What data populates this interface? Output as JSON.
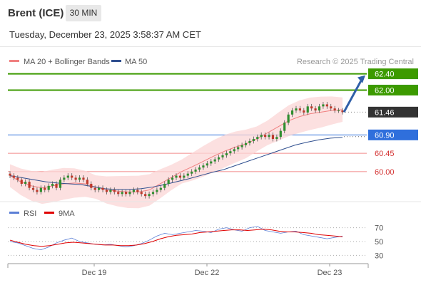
{
  "header": {
    "symbol": "Brent (ICE)",
    "timeframe": "30 MIN",
    "datetime": "Tuesday, December 23, 2025 3:58:37 AM CET"
  },
  "legend": {
    "ma20_label": "MA 20 + Bollinger Bands",
    "ma50_label": "MA 50",
    "copyright": "Research © 2025 Trading Central",
    "ma20_color": "#f08080",
    "ma50_color": "#2f4f8f"
  },
  "rsi_legend": {
    "rsi_label": "RSI",
    "ma_label": "9MA",
    "rsi_color": "#5b7fd6",
    "ma_color": "#e00000"
  },
  "levels": [
    {
      "value": 62.4,
      "label": "62.40",
      "kind": "target",
      "color": "#3c9a00"
    },
    {
      "value": 62.0,
      "label": "62.00",
      "kind": "resistance",
      "color": "#3c9a00"
    },
    {
      "value": 61.46,
      "label": "61.46",
      "kind": "last",
      "color": "#333333"
    },
    {
      "value": 60.9,
      "label": "60.90",
      "kind": "pivot",
      "color": "#2f6fdc"
    },
    {
      "value": 60.45,
      "label": "60.45",
      "kind": "support",
      "color": "#f28b8b"
    },
    {
      "value": 60.0,
      "label": "60.00",
      "kind": "support",
      "color": "#f28b8b"
    }
  ],
  "x_axis": {
    "labels": [
      "Dec 19",
      "Dec 22",
      "Dec 23"
    ]
  },
  "chart_data": [
    {
      "type": "candlestick",
      "title": "",
      "ylim": [
        59.35,
        62.55
      ],
      "series": [
        {
          "name": "Brent (ICE)",
          "closes": [
            59.9,
            59.85,
            59.8,
            59.7,
            59.75,
            59.6,
            59.55,
            59.5,
            59.6,
            59.55,
            59.65,
            59.7,
            59.6,
            59.8,
            59.85,
            59.9,
            59.85,
            59.8,
            59.85,
            59.8,
            59.7,
            59.6,
            59.55,
            59.6,
            59.55,
            59.5,
            59.55,
            59.5,
            59.45,
            59.5,
            59.45,
            59.5,
            59.55,
            59.5,
            59.45,
            59.4,
            59.45,
            59.5,
            59.55,
            59.6,
            59.7,
            59.8,
            59.85,
            59.9,
            59.85,
            59.9,
            59.95,
            60.0,
            60.05,
            60.1,
            60.15,
            60.2,
            60.25,
            60.3,
            60.35,
            60.4,
            60.45,
            60.5,
            60.55,
            60.6,
            60.65,
            60.7,
            60.75,
            60.8,
            60.85,
            60.9,
            60.85,
            60.9,
            60.8,
            60.85,
            61.0,
            61.2,
            61.4,
            61.5,
            61.55,
            61.5,
            61.45,
            61.6,
            61.55,
            61.5,
            61.6,
            61.65,
            61.6,
            61.55,
            61.5,
            61.5,
            61.46
          ]
        },
        {
          "name": "MA 20",
          "values_approx": [
            59.9,
            59.75,
            59.65,
            59.6,
            59.65,
            59.7,
            59.72,
            59.7,
            59.62,
            59.55,
            59.52,
            59.5,
            59.5,
            59.55,
            59.7,
            59.85,
            60.0,
            60.12,
            60.25,
            60.38,
            60.5,
            60.6,
            60.68,
            60.8,
            60.95,
            61.1,
            61.25,
            61.35,
            61.42,
            61.46,
            61.5,
            61.52
          ]
        },
        {
          "name": "MA 50",
          "values_approx": [
            59.9,
            59.85,
            59.8,
            59.75,
            59.72,
            59.7,
            59.68,
            59.63,
            59.58,
            59.56,
            59.56,
            59.58,
            59.62,
            59.68,
            59.75,
            59.82,
            59.9,
            59.98,
            60.05,
            60.15,
            60.25,
            60.35,
            60.45,
            60.55,
            60.65,
            60.72,
            60.78,
            60.82,
            60.84
          ]
        }
      ]
    },
    {
      "type": "line",
      "title": "",
      "ylim": [
        20,
        80
      ],
      "yticks": [
        70,
        50,
        30
      ],
      "series": [
        {
          "name": "RSI",
          "values_approx": [
            50,
            48,
            44,
            40,
            38,
            42,
            48,
            52,
            55,
            50,
            48,
            46,
            45,
            46,
            44,
            42,
            44,
            47,
            52,
            58,
            62,
            60,
            62,
            64,
            66,
            65,
            63,
            68,
            70,
            67,
            65,
            70,
            72,
            66,
            64,
            62,
            64,
            65,
            60,
            58,
            56,
            54,
            56,
            58
          ]
        },
        {
          "name": "9MA",
          "values_approx": [
            52,
            49,
            46,
            44,
            43,
            44,
            46,
            48,
            49,
            48,
            47,
            46,
            45,
            45,
            44,
            44,
            45,
            47,
            50,
            54,
            57,
            59,
            60,
            61,
            63,
            64,
            65,
            66,
            67,
            67,
            66,
            67,
            68,
            67,
            65,
            64,
            64,
            63,
            62,
            60,
            59,
            58,
            57
          ]
        }
      ]
    }
  ]
}
